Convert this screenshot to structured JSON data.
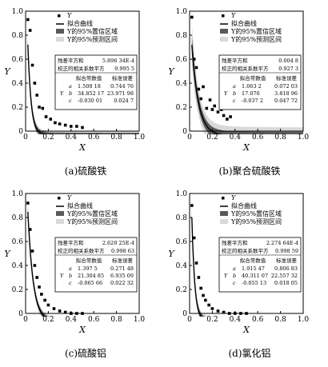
{
  "chart_data": [
    {
      "type": "scatter",
      "caption": "(a)硫酸铁",
      "xlabel": "X",
      "ylabel": "Y",
      "xlim": [
        0,
        1.0
      ],
      "ylim": [
        0,
        1.0
      ],
      "xticks": [
        "0",
        "0.2",
        "0.4",
        "0.6",
        "0.8",
        "1.0"
      ],
      "yticks": [
        "0",
        "0.2",
        "0.4",
        "0.6",
        "0.8",
        "1.0"
      ],
      "legend": [
        "Y",
        "拟合曲线",
        "Y的95%置信区域",
        "Y的95%预测区间"
      ],
      "stats": [
        {
          "label": "残差平方和",
          "value": "5.896 34E-4"
        },
        {
          "label": "校正的相关系数平方",
          "value": "0.995 5"
        }
      ],
      "param_headers": [
        "拟合常数值",
        "标准误差"
      ],
      "params": [
        {
          "name": "a",
          "value": "1.508 18",
          "error": "0.744 76"
        },
        {
          "name": "b",
          "value": "34.852 17",
          "error": "23.971 98"
        },
        {
          "name": "c",
          "value": "-0.030 01",
          "error": "0.024 7"
        }
      ],
      "params_y_label": "Y",
      "curve": {
        "a": 1.50818,
        "b": 34.85217,
        "c": -0.03001
      },
      "conf_half": 0.03,
      "pred_half": 0.05,
      "points": {
        "x": [
          0.02,
          0.04,
          0.06,
          0.08,
          0.1,
          0.12,
          0.15,
          0.18,
          0.22,
          0.26,
          0.3,
          0.35,
          0.4,
          0.45,
          0.5
        ],
        "y": [
          0.93,
          0.84,
          0.55,
          0.4,
          0.3,
          0.2,
          0.19,
          0.12,
          0.1,
          0.07,
          0.06,
          0.05,
          0.04,
          0.04,
          0.03
        ]
      }
    },
    {
      "type": "scatter",
      "caption": "(b)聚合硫酸铁",
      "xlabel": "X",
      "ylabel": "Y",
      "xlim": [
        0,
        1.0
      ],
      "ylim": [
        0,
        1.0
      ],
      "xticks": [
        "0",
        "0.2",
        "0.4",
        "0.6",
        "0.8",
        "1.0"
      ],
      "yticks": [
        "0",
        "0.2",
        "0.4",
        "0.6",
        "0.8",
        "1.0"
      ],
      "legend": [
        "Y",
        "拟合曲线",
        "Y的95%置信区域",
        "Y的95%预测区间"
      ],
      "stats": [
        {
          "label": "残差平方和",
          "value": "0.004 8"
        },
        {
          "label": "校正的相关系数平方",
          "value": "0.927 3"
        }
      ],
      "param_headers": [
        "拟合常数值",
        "标准误差"
      ],
      "params": [
        {
          "name": "a",
          "value": "1.063 2",
          "error": "0.072 03"
        },
        {
          "name": "b",
          "value": "17.076",
          "error": "3.818 96"
        },
        {
          "name": "c",
          "value": "-0.037 2",
          "error": "0.047 72"
        }
      ],
      "params_y_label": "Y",
      "curve": {
        "a": 1.0632,
        "b": 17.076,
        "c": -0.0372
      },
      "conf_half": 0.06,
      "pred_half": 0.13,
      "points": {
        "x": [
          0.02,
          0.04,
          0.06,
          0.08,
          0.1,
          0.12,
          0.15,
          0.18,
          0.2,
          0.22,
          0.25,
          0.28,
          0.3,
          0.33,
          0.36
        ],
        "y": [
          0.95,
          0.6,
          0.53,
          0.35,
          0.27,
          0.37,
          0.19,
          0.26,
          0.18,
          0.21,
          0.16,
          0.18,
          0.13,
          0.1,
          0.12
        ]
      }
    },
    {
      "type": "scatter",
      "caption": "(c)硫酸铝",
      "xlabel": "X",
      "ylabel": "Y",
      "xlim": [
        0,
        1.0
      ],
      "ylim": [
        0,
        1.0
      ],
      "xticks": [
        "0",
        "0.2",
        "0.4",
        "0.6",
        "0.8",
        "1.0"
      ],
      "yticks": [
        "0",
        "0.2",
        "0.4",
        "0.6",
        "0.8",
        "1.0"
      ],
      "legend": [
        "Y",
        "拟合曲线",
        "Y的95%置信区域",
        "Y的95%预测区间"
      ],
      "stats": [
        {
          "label": "残差平方和",
          "value": "2.620 25E-4"
        },
        {
          "label": "校正的相关系数平方",
          "value": "0.998 63"
        }
      ],
      "param_headers": [
        "拟合常数值",
        "标准误差"
      ],
      "params": [
        {
          "name": "a",
          "value": "1.397 5",
          "error": "0.271 48"
        },
        {
          "name": "b",
          "value": "21.304 85",
          "error": "6.935 09"
        },
        {
          "name": "c",
          "value": "-0.065 66",
          "error": "0.022 32"
        }
      ],
      "params_y_label": "Y",
      "curve": {
        "a": 1.3975,
        "b": 21.30485,
        "c": -0.06566
      },
      "conf_half": 0.03,
      "pred_half": 0.05,
      "points": {
        "x": [
          0.02,
          0.04,
          0.06,
          0.08,
          0.1,
          0.12,
          0.14,
          0.17,
          0.2,
          0.25,
          0.3,
          0.35,
          0.4,
          0.45,
          0.5
        ],
        "y": [
          0.92,
          0.7,
          0.52,
          0.4,
          0.3,
          0.22,
          0.16,
          0.11,
          0.07,
          0.04,
          0.02,
          0.01,
          0.0,
          0.0,
          0.0
        ]
      }
    },
    {
      "type": "scatter",
      "caption": "(d)氯化铝",
      "xlabel": "X",
      "ylabel": "Y",
      "xlim": [
        0,
        1.0
      ],
      "ylim": [
        0,
        1.0
      ],
      "xticks": [
        "0",
        "0.2",
        "0.4",
        "0.6",
        "0.8",
        "1.0"
      ],
      "yticks": [
        "0",
        "0.2",
        "0.4",
        "0.6",
        "0.8",
        "1.0"
      ],
      "legend": [
        "Y",
        "拟合曲线",
        "Y的95%置信区域",
        "Y的95%预测区间"
      ],
      "stats": [
        {
          "label": "残差平方和",
          "value": "2.274 64E-4"
        },
        {
          "label": "校正的相关系数平方",
          "value": "0.998 59"
        }
      ],
      "param_headers": [
        "拟合常数值",
        "标准误差"
      ],
      "params": [
        {
          "name": "a",
          "value": "1.915 47",
          "error": "0.806 83"
        },
        {
          "name": "b",
          "value": "40.311 07",
          "error": "22.557 32"
        },
        {
          "name": "c",
          "value": "-0.055 13",
          "error": "0.018 05"
        }
      ],
      "params_y_label": "Y",
      "curve": {
        "a": 1.91547,
        "b": 40.31107,
        "c": -0.05513
      },
      "conf_half": 0.03,
      "pred_half": 0.05,
      "points": {
        "x": [
          0.02,
          0.04,
          0.06,
          0.08,
          0.1,
          0.12,
          0.14,
          0.17,
          0.2,
          0.25,
          0.3,
          0.35,
          0.4,
          0.45,
          0.5
        ],
        "y": [
          0.9,
          0.63,
          0.42,
          0.3,
          0.21,
          0.15,
          0.11,
          0.07,
          0.04,
          0.02,
          0.01,
          0.0,
          0.0,
          0.0,
          0.0
        ]
      }
    }
  ]
}
